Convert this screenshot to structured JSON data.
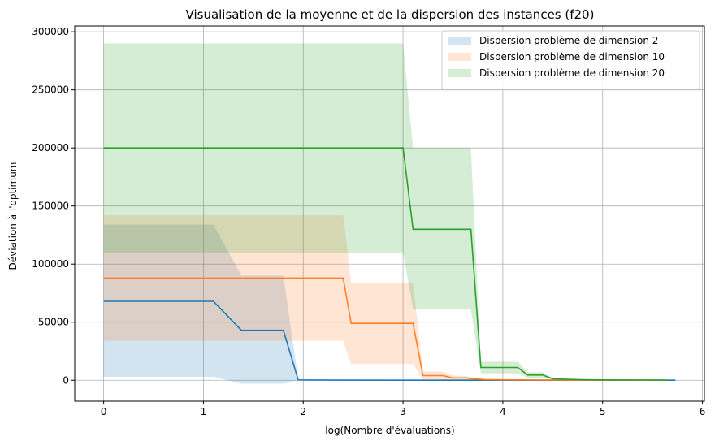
{
  "chart_data": {
    "type": "line",
    "title": "Visualisation de la moyenne et de la dispersion des instances (f20)",
    "xlabel": "log(Nombre d'évaluations)",
    "ylabel": "Déviation à l'optimum",
    "xlim": [
      -0.29,
      6.02
    ],
    "ylim": [
      -18000,
      305000
    ],
    "xticks": [
      0,
      1,
      2,
      3,
      4,
      5,
      6
    ],
    "yticks": [
      0,
      50000,
      100000,
      150000,
      200000,
      250000,
      300000
    ],
    "grid": true,
    "legend_position": "top-right",
    "series": [
      {
        "name": "Dispersion problème de dimension 2",
        "color": "#1f77b4",
        "x": [
          0,
          1.1,
          1.38,
          1.8,
          1.95,
          2.3,
          3.0,
          4.0,
          5.0,
          5.73
        ],
        "mean": [
          68000,
          68000,
          43000,
          43000,
          300,
          100,
          50,
          20,
          10,
          5
        ],
        "lower": [
          3000,
          3000,
          -3000,
          -3000,
          -50,
          -50,
          -20,
          -10,
          -5,
          -2
        ],
        "upper": [
          134000,
          134000,
          90000,
          90000,
          650,
          250,
          120,
          50,
          25,
          12
        ]
      },
      {
        "name": "Dispersion problème de dimension 10",
        "color": "#ff7f28",
        "x": [
          0,
          2.4,
          2.48,
          3.1,
          3.2,
          3.4,
          3.5,
          3.62,
          3.75,
          3.82,
          4.0,
          4.5,
          5.0,
          5.65
        ],
        "mean": [
          88000,
          88000,
          49000,
          49000,
          4000,
          4000,
          2000,
          2000,
          1000,
          600,
          400,
          200,
          100,
          50
        ],
        "lower": [
          34000,
          34000,
          14000,
          14000,
          500,
          500,
          200,
          200,
          100,
          60,
          40,
          20,
          10,
          5
        ],
        "upper": [
          142000,
          142000,
          84000,
          84000,
          7500,
          7500,
          3800,
          3800,
          1900,
          1200,
          800,
          400,
          200,
          100
        ]
      },
      {
        "name": "Dispersion problème de dimension 20",
        "color": "#2ca02c",
        "x": [
          0,
          3.0,
          3.1,
          3.68,
          3.78,
          4.15,
          4.25,
          4.4,
          4.5,
          4.65,
          4.8,
          5.0,
          5.65
        ],
        "mean": [
          200000,
          200000,
          130000,
          130000,
          11000,
          11000,
          4500,
          4500,
          1200,
          800,
          500,
          300,
          100
        ],
        "lower": [
          110000,
          110000,
          61000,
          61000,
          6000,
          6000,
          2000,
          2000,
          600,
          400,
          250,
          150,
          50
        ],
        "upper": [
          290000,
          290000,
          200000,
          200000,
          16000,
          16000,
          7000,
          7000,
          1800,
          1200,
          750,
          450,
          150
        ]
      }
    ]
  }
}
